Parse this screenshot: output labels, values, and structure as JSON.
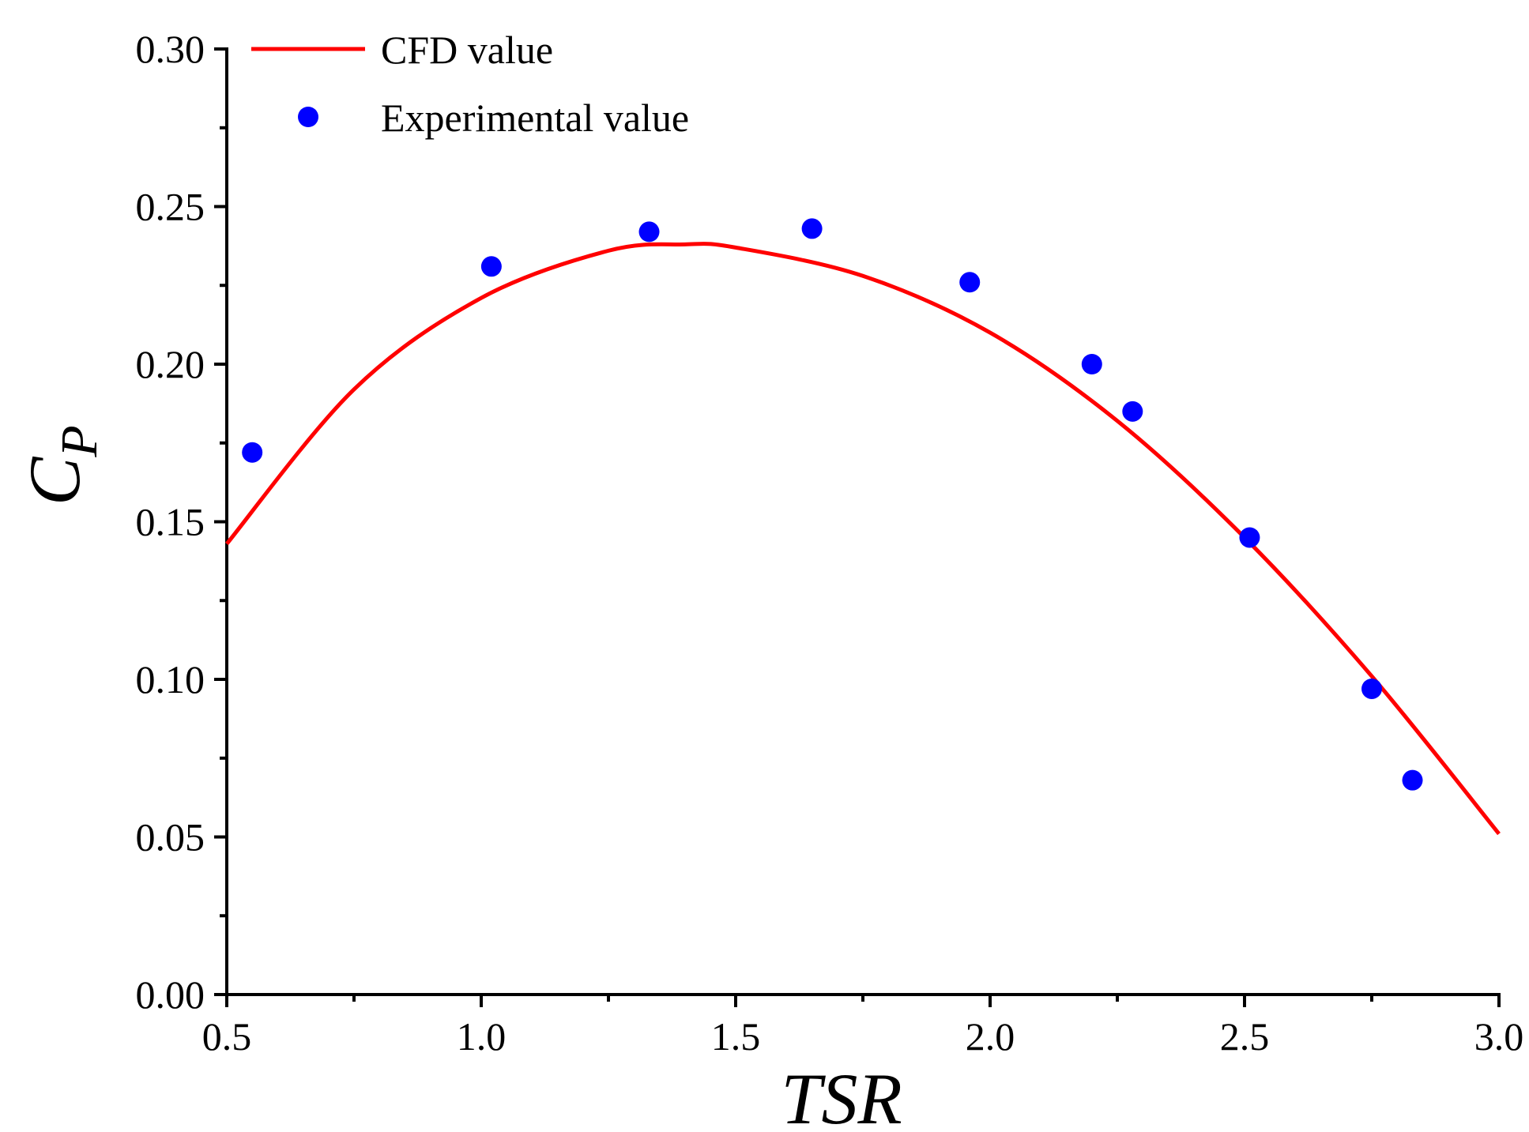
{
  "chart_data": {
    "type": "line+scatter",
    "title": "",
    "xlabel": "TSR",
    "ylabel_main": "C",
    "ylabel_sub": "P",
    "xlim": [
      0.5,
      3.0
    ],
    "ylim": [
      0.0,
      0.3
    ],
    "x_ticks": [
      "0.5",
      "1.0",
      "1.5",
      "2.0",
      "2.5",
      "3.0"
    ],
    "y_ticks": [
      "0.00",
      "0.05",
      "0.10",
      "0.15",
      "0.20",
      "0.25",
      "0.30"
    ],
    "legend_position": "top-left",
    "series": [
      {
        "name": "CFD value",
        "kind": "line",
        "color": "#ff0000",
        "x": [
          0.5,
          0.75,
          1.0,
          1.25,
          1.4,
          1.5,
          1.75,
          2.0,
          2.25,
          2.5,
          2.75,
          3.0
        ],
        "y": [
          0.143,
          0.192,
          0.221,
          0.236,
          0.238,
          0.237,
          0.228,
          0.21,
          0.182,
          0.145,
          0.101,
          0.051
        ]
      },
      {
        "name": "Experimental value",
        "kind": "scatter",
        "color": "#0000ff",
        "x": [
          0.55,
          1.02,
          1.33,
          1.65,
          1.96,
          2.2,
          2.28,
          2.51,
          2.75,
          2.83
        ],
        "y": [
          0.172,
          0.231,
          0.242,
          0.243,
          0.226,
          0.2,
          0.185,
          0.145,
          0.097,
          0.068
        ]
      }
    ]
  }
}
